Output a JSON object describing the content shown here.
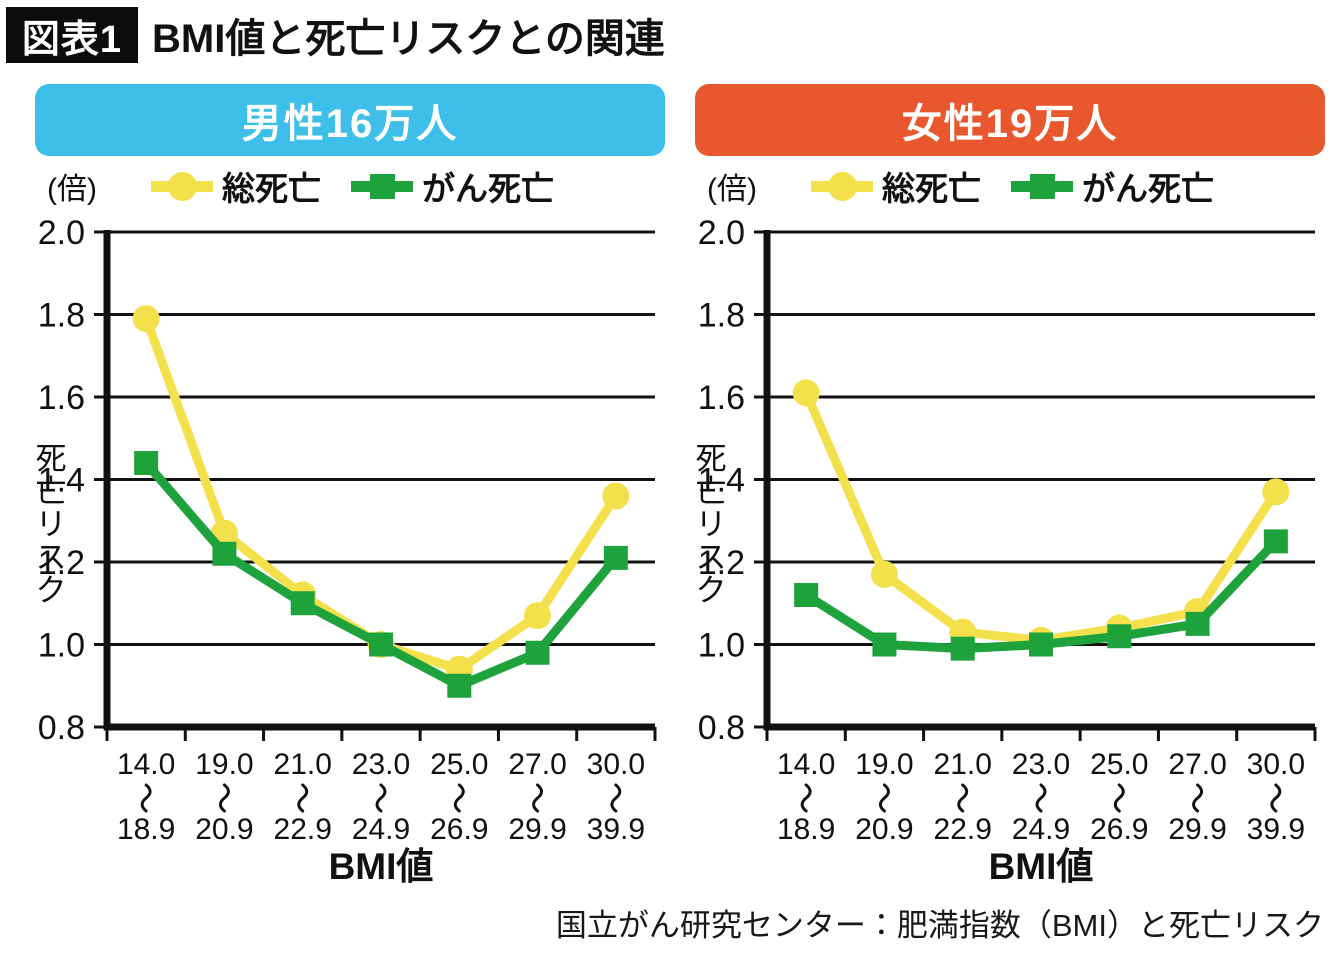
{
  "title": {
    "tag": "図表1",
    "text": "BMI値と死亡リスクとの関連"
  },
  "source": "国立がん研究センター：肥満指数（BMI）と死亡リスク",
  "chart_data": [
    {
      "type": "line",
      "title": "男性16万人",
      "header_color": "#3EBFE9",
      "unit": "(倍)",
      "ylabel": "死亡リスク",
      "xlabel": "BMI値",
      "ylim": [
        0.8,
        2.0
      ],
      "yticks": [
        2.0,
        1.8,
        1.6,
        1.4,
        1.2,
        1.0,
        0.8
      ],
      "grid": true,
      "legend_position": "top",
      "range_symbol": "〜",
      "categories": [
        {
          "top": "14.0",
          "bottom": "18.9"
        },
        {
          "top": "19.0",
          "bottom": "20.9"
        },
        {
          "top": "21.0",
          "bottom": "22.9"
        },
        {
          "top": "23.0",
          "bottom": "24.9"
        },
        {
          "top": "25.0",
          "bottom": "26.9"
        },
        {
          "top": "27.0",
          "bottom": "29.9"
        },
        {
          "top": "30.0",
          "bottom": "39.9"
        }
      ],
      "series": [
        {
          "name": "総死亡",
          "marker": "circle",
          "color": "#F4E04B",
          "values": [
            1.79,
            1.27,
            1.12,
            1.0,
            0.94,
            1.07,
            1.36
          ]
        },
        {
          "name": "がん死亡",
          "marker": "square",
          "color": "#1EA23C",
          "values": [
            1.44,
            1.22,
            1.1,
            1.0,
            0.9,
            0.98,
            1.21
          ]
        }
      ]
    },
    {
      "type": "line",
      "title": "女性19万人",
      "header_color": "#E8572D",
      "unit": "(倍)",
      "ylabel": "死亡リスク",
      "xlabel": "BMI値",
      "ylim": [
        0.8,
        2.0
      ],
      "yticks": [
        2.0,
        1.8,
        1.6,
        1.4,
        1.2,
        1.0,
        0.8
      ],
      "grid": true,
      "legend_position": "top",
      "range_symbol": "〜",
      "categories": [
        {
          "top": "14.0",
          "bottom": "18.9"
        },
        {
          "top": "19.0",
          "bottom": "20.9"
        },
        {
          "top": "21.0",
          "bottom": "22.9"
        },
        {
          "top": "23.0",
          "bottom": "24.9"
        },
        {
          "top": "25.0",
          "bottom": "26.9"
        },
        {
          "top": "27.0",
          "bottom": "29.9"
        },
        {
          "top": "30.0",
          "bottom": "39.9"
        }
      ],
      "series": [
        {
          "name": "総死亡",
          "marker": "circle",
          "color": "#F4E04B",
          "values": [
            1.61,
            1.17,
            1.03,
            1.01,
            1.04,
            1.08,
            1.37
          ]
        },
        {
          "name": "がん死亡",
          "marker": "square",
          "color": "#1EA23C",
          "values": [
            1.12,
            1.0,
            0.99,
            1.0,
            1.02,
            1.05,
            1.25
          ]
        }
      ]
    }
  ]
}
